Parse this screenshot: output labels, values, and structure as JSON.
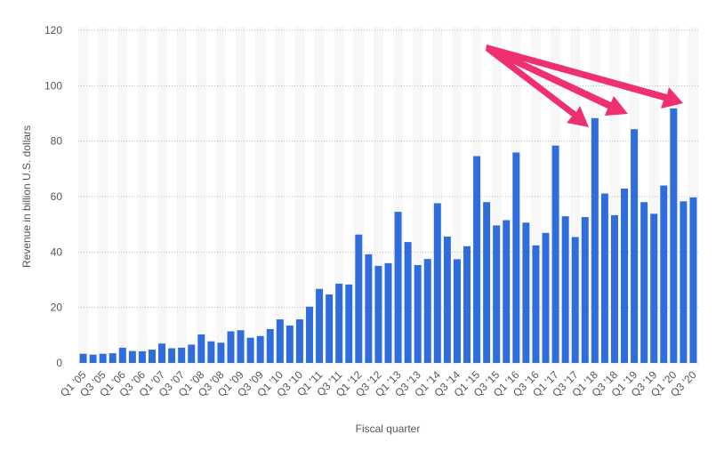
{
  "chart_data": {
    "type": "bar",
    "y_label": "Revenue in billion U.S. dollars",
    "x_label": "Fiscal quarter",
    "categories": [
      "Q1 '05",
      null,
      "Q3 '05",
      null,
      "Q1 '06",
      null,
      "Q3 '06",
      null,
      "Q1 '07",
      null,
      "Q3 '07",
      null,
      "Q1 '08",
      null,
      "Q3 '08",
      null,
      "Q1 '09",
      null,
      "Q3 '09",
      null,
      "Q1 '10",
      null,
      "Q3 '10",
      null,
      "Q1 '11",
      null,
      "Q3 '11",
      null,
      "Q1 '12",
      null,
      "Q3 '12",
      null,
      "Q1 '13",
      null,
      "Q3 '13",
      null,
      "Q1 '14",
      null,
      "Q3 '14",
      null,
      "Q1 '15",
      null,
      "Q3 '15",
      null,
      "Q1 '16",
      null,
      "Q3 '16",
      null,
      "Q1 '17",
      null,
      "Q3 '17",
      null,
      "Q1 '18",
      null,
      "Q3 '18",
      null,
      "Q1 '19",
      null,
      "Q3 '19",
      null,
      "Q1 '20",
      null,
      "Q3 '20"
    ],
    "values": [
      3.3,
      3.0,
      3.3,
      3.5,
      5.5,
      4.3,
      4.2,
      4.8,
      7.0,
      5.3,
      5.5,
      6.6,
      10.3,
      7.8,
      7.3,
      11.4,
      11.8,
      9.1,
      9.7,
      12.2,
      15.7,
      13.5,
      15.7,
      20.3,
      26.7,
      24.7,
      28.6,
      28.3,
      46.3,
      39.2,
      35.0,
      36.0,
      54.5,
      43.6,
      35.3,
      37.5,
      57.6,
      45.6,
      37.4,
      42.1,
      74.6,
      58.0,
      49.6,
      51.5,
      75.9,
      50.6,
      42.4,
      46.9,
      78.4,
      52.9,
      45.4,
      52.6,
      88.3,
      61.1,
      53.3,
      62.9,
      84.3,
      58.0,
      53.8,
      64.0,
      91.8,
      58.3,
      59.7
    ],
    "color": "#2e6ddb",
    "ylim": [
      0,
      120
    ],
    "yticks": [
      0,
      20,
      40,
      60,
      80,
      100,
      120
    ],
    "grid": true
  }
}
